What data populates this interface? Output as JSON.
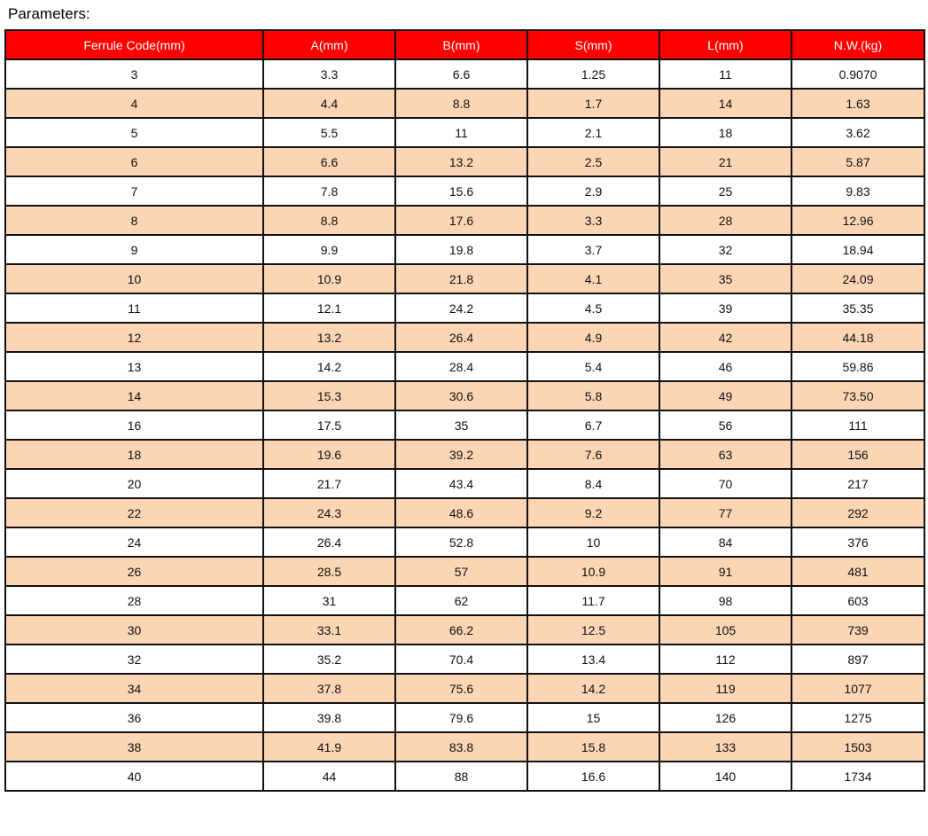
{
  "title": "Parameters:",
  "colors": {
    "header_bg": "#ff0000",
    "alt_row_bg": "#fcd5b4"
  },
  "table": {
    "columns": [
      "Ferrule Code(mm)",
      "A(mm)",
      "B(mm)",
      "S(mm)",
      "L(mm)",
      "N.W.(kg)"
    ],
    "rows": [
      [
        "3",
        "3.3",
        "6.6",
        "1.25",
        "11",
        "0.9070"
      ],
      [
        "4",
        "4.4",
        "8.8",
        "1.7",
        "14",
        "1.63"
      ],
      [
        "5",
        "5.5",
        "11",
        "2.1",
        "18",
        "3.62"
      ],
      [
        "6",
        "6.6",
        "13.2",
        "2.5",
        "21",
        "5.87"
      ],
      [
        "7",
        "7.8",
        "15.6",
        "2.9",
        "25",
        "9.83"
      ],
      [
        "8",
        "8.8",
        "17.6",
        "3.3",
        "28",
        "12.96"
      ],
      [
        "9",
        "9.9",
        "19.8",
        "3.7",
        "32",
        "18.94"
      ],
      [
        "10",
        "10.9",
        "21.8",
        "4.1",
        "35",
        "24.09"
      ],
      [
        "11",
        "12.1",
        "24.2",
        "4.5",
        "39",
        "35.35"
      ],
      [
        "12",
        "13.2",
        "26.4",
        "4.9",
        "42",
        "44.18"
      ],
      [
        "13",
        "14.2",
        "28.4",
        "5.4",
        "46",
        "59.86"
      ],
      [
        "14",
        "15.3",
        "30.6",
        "5.8",
        "49",
        "73.50"
      ],
      [
        "16",
        "17.5",
        "35",
        "6.7",
        "56",
        "111"
      ],
      [
        "18",
        "19.6",
        "39.2",
        "7.6",
        "63",
        "156"
      ],
      [
        "20",
        "21.7",
        "43.4",
        "8.4",
        "70",
        "217"
      ],
      [
        "22",
        "24.3",
        "48.6",
        "9.2",
        "77",
        "292"
      ],
      [
        "24",
        "26.4",
        "52.8",
        "10",
        "84",
        "376"
      ],
      [
        "26",
        "28.5",
        "57",
        "10.9",
        "91",
        "481"
      ],
      [
        "28",
        "31",
        "62",
        "11.7",
        "98",
        "603"
      ],
      [
        "30",
        "33.1",
        "66.2",
        "12.5",
        "105",
        "739"
      ],
      [
        "32",
        "35.2",
        "70.4",
        "13.4",
        "112",
        "897"
      ],
      [
        "34",
        "37.8",
        "75.6",
        "14.2",
        "119",
        "1077"
      ],
      [
        "36",
        "39.8",
        "79.6",
        "15",
        "126",
        "1275"
      ],
      [
        "38",
        "41.9",
        "83.8",
        "15.8",
        "133",
        "1503"
      ],
      [
        "40",
        "44",
        "88",
        "16.6",
        "140",
        "1734"
      ]
    ]
  }
}
